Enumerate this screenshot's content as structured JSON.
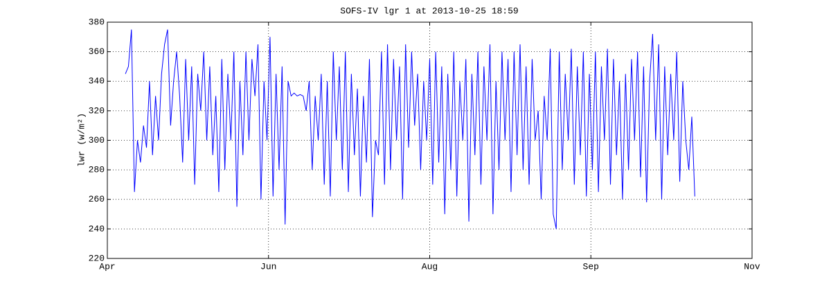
{
  "chart_data": {
    "type": "line",
    "title": "SOFS-IV lgr 1 at 2013-10-25 18:59",
    "ylabel": "lwr (w/m²)",
    "color": "#0000ff",
    "grid": true,
    "xlim": [
      0,
      214
    ],
    "xticks": [
      {
        "value": 0,
        "label": "Apr"
      },
      {
        "value": 53.5,
        "label": "Jun"
      },
      {
        "value": 107,
        "label": "Aug"
      },
      {
        "value": 160.5,
        "label": "Sep"
      },
      {
        "value": 214,
        "label": "Nov"
      }
    ],
    "ylim": [
      220,
      380
    ],
    "yticks": [
      220,
      240,
      260,
      280,
      300,
      320,
      340,
      360,
      380
    ],
    "x": [
      6,
      7,
      8,
      9,
      10,
      11,
      12,
      13,
      14,
      15,
      16,
      17,
      18,
      19,
      20,
      21,
      22,
      23,
      24,
      25,
      26,
      27,
      28,
      29,
      30,
      31,
      32,
      33,
      34,
      35,
      36,
      37,
      38,
      39,
      40,
      41,
      42,
      43,
      44,
      45,
      46,
      47,
      48,
      49,
      50,
      51,
      52,
      53,
      54,
      55,
      56,
      57,
      58,
      59,
      60,
      61,
      62,
      63,
      64,
      65,
      66,
      67,
      68,
      69,
      70,
      71,
      72,
      73,
      74,
      75,
      76,
      77,
      78,
      79,
      80,
      81,
      82,
      83,
      84,
      85,
      86,
      87,
      88,
      89,
      90,
      91,
      92,
      93,
      94,
      95,
      96,
      97,
      98,
      99,
      100,
      101,
      102,
      103,
      104,
      105,
      106,
      107,
      108,
      109,
      110,
      111,
      112,
      113,
      114,
      115,
      116,
      117,
      118,
      119,
      120,
      121,
      122,
      123,
      124,
      125,
      126,
      127,
      128,
      129,
      130,
      131,
      132,
      133,
      134,
      135,
      136,
      137,
      138,
      139,
      140,
      141,
      142,
      143,
      144,
      145,
      146,
      147,
      148,
      149,
      150,
      151,
      152,
      153,
      154,
      155,
      156,
      157,
      158,
      159,
      160,
      161,
      162,
      163,
      164,
      165,
      166,
      167,
      168,
      169,
      170,
      171,
      172,
      173,
      174,
      175,
      176,
      177,
      178,
      179,
      180,
      181,
      182,
      183,
      184,
      185,
      186,
      187,
      188,
      189,
      190,
      191,
      192,
      193,
      194,
      195
    ],
    "values": [
      345,
      350,
      375,
      265,
      300,
      285,
      310,
      295,
      340,
      290,
      330,
      300,
      345,
      365,
      375,
      310,
      340,
      360,
      330,
      285,
      355,
      300,
      350,
      270,
      345,
      320,
      360,
      300,
      350,
      290,
      330,
      265,
      355,
      280,
      345,
      300,
      360,
      255,
      340,
      290,
      360,
      300,
      355,
      330,
      365,
      260,
      340,
      300,
      370,
      262,
      345,
      280,
      350,
      243,
      340,
      330,
      332,
      330,
      331,
      330,
      320,
      340,
      280,
      330,
      300,
      345,
      270,
      340,
      262,
      360,
      300,
      350,
      280,
      360,
      265,
      345,
      290,
      335,
      262,
      330,
      285,
      355,
      248,
      300,
      290,
      360,
      270,
      365,
      280,
      355,
      300,
      350,
      260,
      365,
      295,
      360,
      310,
      345,
      280,
      340,
      300,
      355,
      270,
      360,
      285,
      350,
      250,
      345,
      280,
      360,
      262,
      340,
      300,
      355,
      245,
      345,
      290,
      360,
      270,
      350,
      300,
      365,
      250,
      340,
      280,
      360,
      300,
      355,
      265,
      360,
      290,
      365,
      280,
      350,
      270,
      355,
      300,
      320,
      260,
      330,
      300,
      362,
      250,
      240,
      360,
      280,
      345,
      300,
      362,
      270,
      350,
      290,
      360,
      262,
      345,
      280,
      360,
      265,
      350,
      300,
      362,
      270,
      355,
      290,
      340,
      260,
      345,
      280,
      355,
      300,
      360,
      275,
      350,
      258,
      340,
      372,
      300,
      365,
      260,
      350,
      290,
      345,
      300,
      360,
      272,
      340,
      300,
      280,
      316,
      262
    ]
  }
}
